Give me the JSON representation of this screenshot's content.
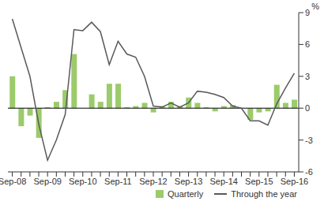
{
  "chart_data": {
    "type": "bar",
    "y_label": "%",
    "categories": [
      "Sep-08",
      null,
      null,
      null,
      "Sep-09",
      null,
      null,
      null,
      "Sep-10",
      null,
      null,
      null,
      "Sep-11",
      null,
      null,
      null,
      "Sep-12",
      null,
      null,
      null,
      "Sep-13",
      null,
      null,
      null,
      "Sep-14",
      null,
      null,
      null,
      "Sep-15",
      null,
      null,
      null,
      "Sep-16"
    ],
    "series": [
      {
        "name": "Quarterly",
        "type": "bar",
        "color": "#9bcb6b",
        "values": [
          3.0,
          -1.7,
          -0.7,
          -2.8,
          0.1,
          0.6,
          1.7,
          5.1,
          0.0,
          1.3,
          0.6,
          2.3,
          2.3,
          0.1,
          0.2,
          0.5,
          -0.4,
          0.2,
          0.6,
          0.2,
          1.0,
          0.5,
          0.1,
          -0.3,
          0.2,
          0.3,
          0.0,
          -1.1,
          -0.4,
          -0.3,
          2.2,
          0.5,
          0.8
        ]
      },
      {
        "name": "Through the year",
        "type": "line",
        "color": "#595959",
        "values": [
          8.4,
          5.7,
          3.0,
          -1.5,
          -4.9,
          -3.0,
          -0.6,
          7.4,
          7.3,
          8.1,
          7.2,
          4.1,
          6.3,
          5.1,
          4.8,
          3.0,
          0.2,
          0.1,
          0.5,
          0.1,
          0.5,
          1.6,
          1.5,
          1.3,
          1.0,
          0.2,
          0.0,
          -1.2,
          -1.2,
          -1.6,
          0.4,
          1.9,
          3.3
        ]
      }
    ],
    "ylim": [
      -6,
      9
    ],
    "yticks": [
      -6,
      -3,
      0,
      3,
      6,
      9
    ],
    "grid": false,
    "legend": "lower right"
  }
}
